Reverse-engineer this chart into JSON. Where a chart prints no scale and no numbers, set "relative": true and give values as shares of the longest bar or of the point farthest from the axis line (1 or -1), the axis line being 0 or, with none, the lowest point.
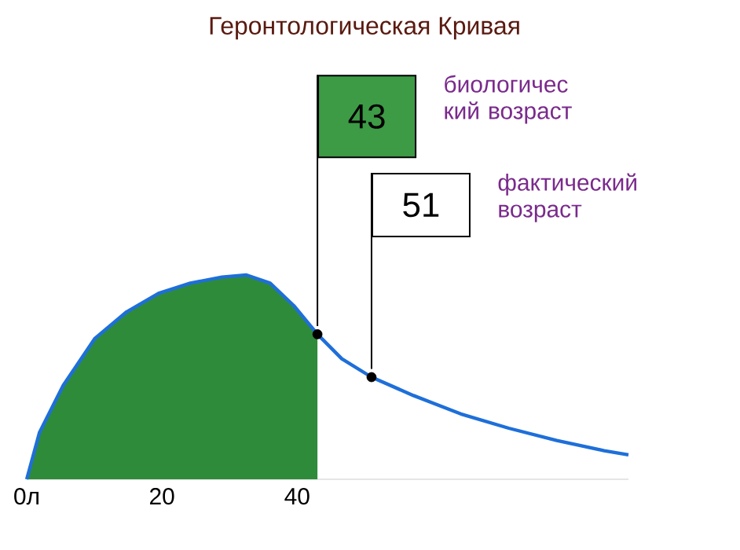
{
  "chart_data": {
    "type": "line",
    "title": "Геронтологическая Кривая",
    "relative": true,
    "xlim": [
      0,
      89
    ],
    "xticks": [
      {
        "value": 0,
        "label": "0л"
      },
      20,
      40
    ],
    "series": [
      {
        "type": "area",
        "color": "#2e8b3a",
        "x": [
          0,
          1.9,
          5.4,
          10.1,
          14.8,
          19.5,
          24.2,
          28.9,
          32.5,
          36,
          39.5,
          43
        ],
        "values": [
          0,
          0.23,
          0.46,
          0.69,
          0.82,
          0.91,
          0.96,
          0.99,
          1.0,
          0.96,
          0.85,
          0.71
        ]
      },
      {
        "color": "#1e6fd9",
        "x": [
          0,
          1.9,
          5.4,
          10.1,
          14.8,
          19.5,
          24.2,
          28.9,
          32.5,
          36,
          39.5,
          43,
          46.6,
          51,
          57.2,
          64.2,
          71.3,
          78.4,
          85.4,
          89
        ],
        "values": [
          0,
          0.23,
          0.46,
          0.69,
          0.82,
          0.91,
          0.96,
          0.99,
          1.0,
          0.96,
          0.85,
          0.71,
          0.59,
          0.5,
          0.41,
          0.32,
          0.25,
          0.19,
          0.14,
          0.12
        ]
      },
      {
        "type": "scatter",
        "color": "#000000",
        "x": [
          43,
          51
        ],
        "values": [
          0.71,
          0.5
        ]
      }
    ],
    "annotations": [
      {
        "text": "43",
        "x": 43,
        "y": 0.71
      },
      {
        "text": "51",
        "x": 51,
        "y": 0.5
      },
      "биологичес кий возраст",
      "фактический возраст"
    ]
  }
}
